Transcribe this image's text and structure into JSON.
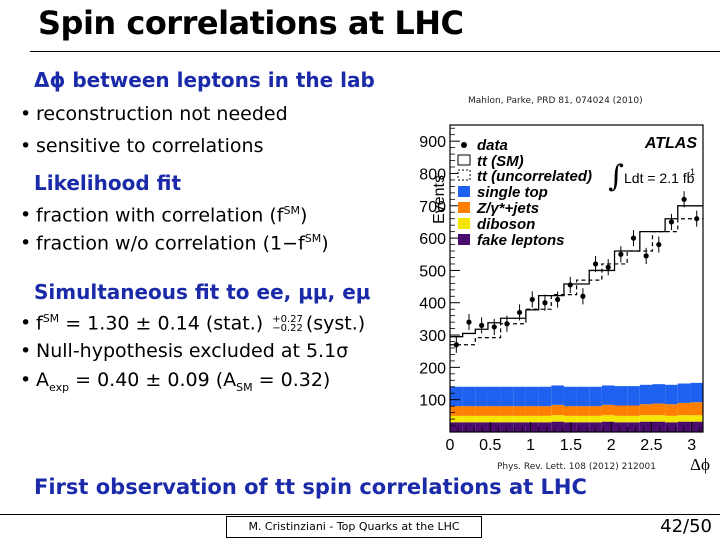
{
  "slide": {
    "title": "Spin correlations at LHC",
    "footer": "M. Cristinziani - Top Quarks at the LHC",
    "page": "42/50"
  },
  "sections": {
    "s1_heading": "Δϕ between leptons in the lab",
    "s1_b1": "reconstruction not needed",
    "s1_b2": "sensitive to correlations",
    "s2_heading": "Likelihood fit",
    "s2_b1_pre": "fraction with correlation (f",
    "s2_b1_sup": "SM",
    "s2_b1_post": ")",
    "s2_b2_pre": "fraction w/o correlation (1−f",
    "s2_b2_sup": "SM",
    "s2_b2_post": ")",
    "s3_heading": "Simultaneous fit to ee, μμ, eμ",
    "s3_b1_f": "f",
    "s3_b1_sup": "SM",
    "s3_b1_main": " = 1.30 ± 0.14 (stat.) ",
    "s3_b1_plus": "+0.27",
    "s3_b1_minus": "−0.22",
    "s3_b1_end": "(syst.)",
    "s3_b2": "Null-hypothesis excluded at 5.1σ",
    "s3_b3_a": "A",
    "s3_b3_sub": "exp",
    "s3_b3_mid": " = 0.40 ± 0.09 (A",
    "s3_b3_sub2": "SM",
    "s3_b3_end": " = 0.32)"
  },
  "refs": {
    "top": "Mahlon, Parke, PRD 81, 074024 (2010)",
    "bottom": "Phys. Rev. Lett. 108 (2012) 212001"
  },
  "conclusion": "First observation of tt spin correlations at LHC",
  "chart_data": {
    "type": "histogram",
    "xlabel": "Δϕ",
    "ylabel": "Events",
    "xlim": [
      0,
      3.14
    ],
    "ylim": [
      0,
      950
    ],
    "xticks": [
      "0",
      "0.5",
      "1",
      "1.5",
      "2",
      "2.5",
      "3"
    ],
    "xtick_values": [
      0,
      0.5,
      1,
      1.5,
      2,
      2.5,
      3
    ],
    "yticks": [
      "100",
      "200",
      "300",
      "400",
      "500",
      "600",
      "700",
      "800",
      "900"
    ],
    "ytick_values": [
      100,
      200,
      300,
      400,
      500,
      600,
      700,
      800,
      900
    ],
    "bin_edges": [
      0,
      0.157,
      0.314,
      0.471,
      0.628,
      0.785,
      0.942,
      1.1,
      1.257,
      1.414,
      1.571,
      1.728,
      1.885,
      2.042,
      2.199,
      2.356,
      2.513,
      2.67,
      2.827,
      2.984,
      3.14
    ],
    "stack": [
      {
        "name": "fake leptons",
        "color": "#4b0a6e",
        "values": [
          30,
          30,
          30,
          30,
          30,
          30,
          30,
          30,
          32,
          30,
          30,
          30,
          32,
          30,
          30,
          32,
          32,
          30,
          32,
          32
        ]
      },
      {
        "name": "diboson",
        "color": "#f5e600",
        "values": [
          20,
          20,
          20,
          20,
          20,
          20,
          20,
          20,
          20,
          20,
          20,
          20,
          20,
          20,
          20,
          20,
          20,
          20,
          20,
          20
        ]
      },
      {
        "name": "Z/γ*+jets",
        "color": "#ff7f00",
        "values": [
          30,
          30,
          30,
          30,
          30,
          30,
          30,
          30,
          32,
          30,
          30,
          30,
          32,
          32,
          32,
          34,
          36,
          36,
          38,
          40
        ]
      },
      {
        "name": "single top",
        "color": "#1e60f0",
        "values": [
          60,
          60,
          60,
          60,
          60,
          60,
          60,
          60,
          60,
          60,
          60,
          60,
          60,
          60,
          60,
          60,
          60,
          60,
          60,
          60
        ]
      }
    ],
    "tt_sm": [
      295,
      305,
      318,
      338,
      352,
      352,
      378,
      422,
      422,
      458,
      458,
      500,
      500,
      560,
      560,
      620,
      620,
      660,
      700,
      700
    ],
    "tt_uncorr": [
      270,
      270,
      292,
      292,
      335,
      335,
      380,
      380,
      425,
      425,
      470,
      470,
      520,
      520,
      560,
      560,
      620,
      620,
      660,
      660
    ],
    "data": [
      270,
      340,
      330,
      325,
      335,
      370,
      410,
      400,
      410,
      455,
      420,
      520,
      510,
      550,
      600,
      545,
      580,
      650,
      720,
      660
    ],
    "data_err": [
      25,
      25,
      25,
      25,
      25,
      25,
      25,
      25,
      25,
      25,
      25,
      25,
      25,
      25,
      25,
      25,
      25,
      25,
      25,
      25
    ],
    "legend": [
      "data",
      "tt (SM)",
      "tt (uncorrelated)",
      "single top",
      "Z/γ*+jets",
      "diboson",
      "fake leptons"
    ],
    "atlas_label": "ATLAS",
    "lumi_label": "Ldt = 2.1 fb",
    "lumi_sup": "-1",
    "integral_symbol": "∫"
  }
}
